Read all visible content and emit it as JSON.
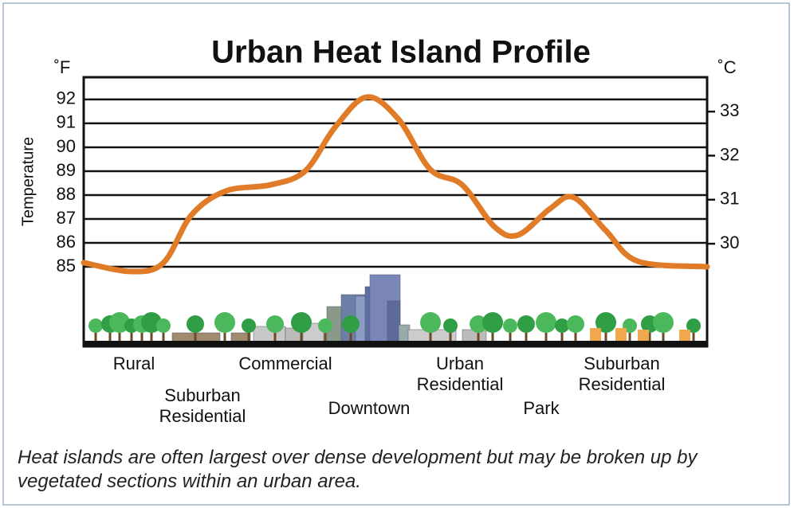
{
  "chart_data": {
    "type": "line",
    "title": "Urban Heat Island Profile",
    "y_unit_label": "˚F",
    "y2_unit_label": "˚C",
    "y_axis_label": "Temperature",
    "xlim": [
      0,
      100
    ],
    "ylim": [
      81.67,
      92.93
    ],
    "yticks": [
      85,
      86,
      87,
      88,
      89,
      90,
      91,
      92
    ],
    "y2lim": [
      27.67,
      33.78
    ],
    "y2ticks": [
      30,
      31,
      32,
      33
    ],
    "grid": true,
    "series": [
      {
        "color": "#e07b28",
        "x": [
          0,
          7.7,
          12.8,
          17.3,
          22.8,
          30,
          35.5,
          40.3,
          45.4,
          50.5,
          55.6,
          60.7,
          65.9,
          69.7,
          74.8,
          78.6,
          83.8,
          88.9,
          100
        ],
        "values": [
          85.17,
          84.8,
          85.17,
          87.17,
          88.17,
          88.43,
          89.0,
          90.83,
          92.1,
          91.17,
          89.07,
          88.43,
          86.67,
          86.33,
          87.43,
          87.9,
          86.5,
          85.23,
          85.0
        ]
      }
    ],
    "zones": [
      "Rural",
      "Suburban Residential",
      "Commercial",
      "Downtown",
      "Urban Residential",
      "Park",
      "Suburban Residential"
    ],
    "caption": "Heat islands are often largest over dense development but may be broken up by vegetated sections within an urban area."
  }
}
